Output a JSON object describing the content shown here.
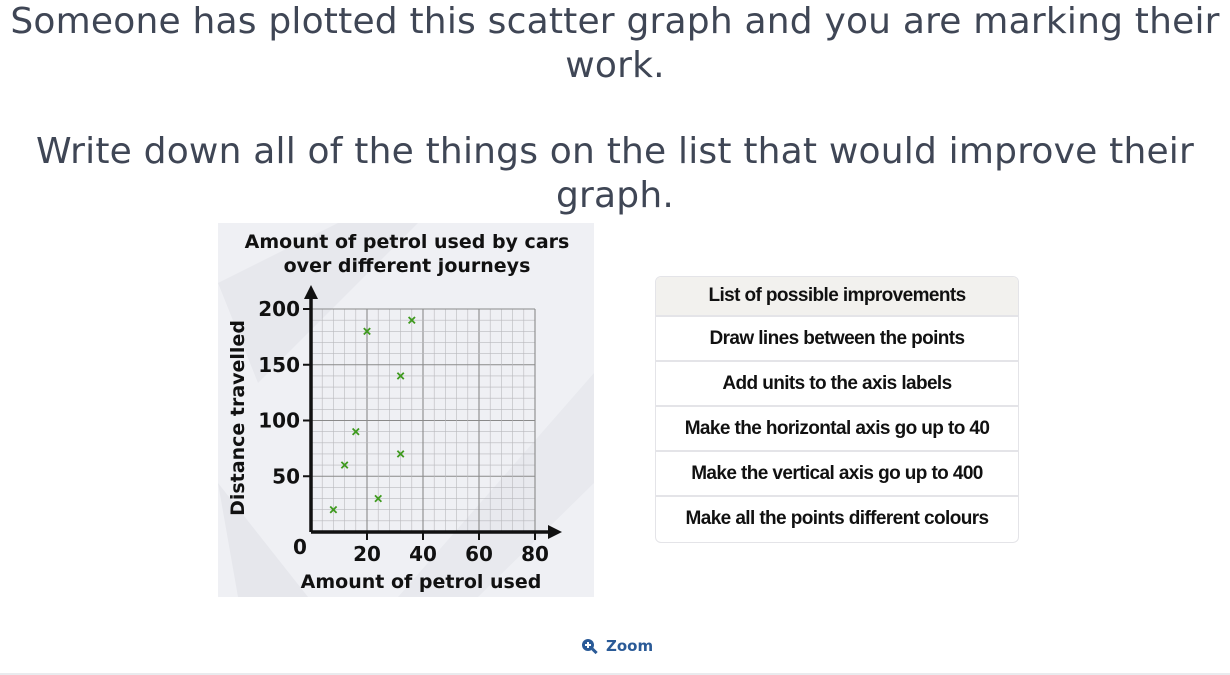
{
  "question": {
    "line1": "Someone has plotted this scatter graph and you are marking their work.",
    "line2": "Write down all of the things on the list that would improve their graph."
  },
  "chart_data": {
    "type": "scatter",
    "title": "Amount of petrol used by cars over different journeys",
    "title_lines": [
      "Amount of petrol used by cars",
      "over different journeys"
    ],
    "xlabel": "Amount of petrol used",
    "ylabel": "Distance travelled",
    "origin_label": "0",
    "xlim": [
      0,
      80
    ],
    "ylim": [
      0,
      200
    ],
    "x_ticks": [
      20,
      40,
      60,
      80
    ],
    "y_ticks": [
      50,
      100,
      150,
      200
    ],
    "grid": true,
    "marker": "x",
    "marker_color": "#3f9a1f",
    "points": [
      {
        "x": 8,
        "y": 20
      },
      {
        "x": 12,
        "y": 60
      },
      {
        "x": 16,
        "y": 90
      },
      {
        "x": 20,
        "y": 180
      },
      {
        "x": 24,
        "y": 30
      },
      {
        "x": 32,
        "y": 70
      },
      {
        "x": 32,
        "y": 140
      },
      {
        "x": 36,
        "y": 190
      }
    ]
  },
  "improvements": {
    "header": "List of possible improvements",
    "items": [
      "Draw lines between the points",
      "Add units to the axis labels",
      "Make the horizontal axis go up to 40",
      "Make the vertical axis go up to 400",
      "Make all the points different colours"
    ]
  },
  "zoom": {
    "label": "Zoom",
    "icon": "magnifier-plus-icon",
    "color": "#2a5a97"
  }
}
